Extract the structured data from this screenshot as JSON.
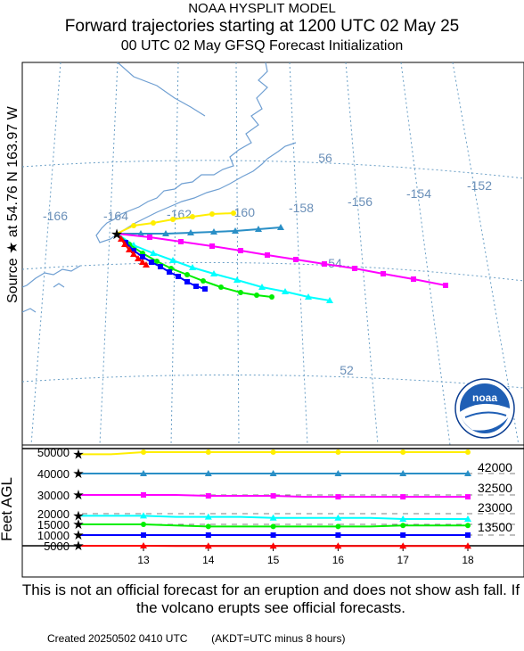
{
  "header": {
    "line1": "NOAA HYSPLIT MODEL",
    "line2": "Forward trajectories starting at 1200 UTC 02 May 25",
    "line3": "00 UTC 02 May     GFSQ  Forecast Initialization"
  },
  "source_label": "Source ★  at    54.76 N  163.97 W",
  "y_axis_label": "Feet AGL",
  "map": {
    "lon_labels": [
      "-166",
      "-164",
      "-162",
      "-160",
      "-158",
      "-156",
      "-154",
      "-152"
    ],
    "lat_labels": [
      "56",
      "54",
      "52"
    ]
  },
  "logo": {
    "text": "noaa",
    "icon": "noaa-logo-icon"
  },
  "chart_data": {
    "type": "line",
    "x": [
      12.5,
      13,
      13.5,
      14,
      14.5,
      15,
      15.5,
      16,
      16.5,
      17,
      17.5,
      18
    ],
    "xticks": [
      "13",
      "14",
      "15",
      "16",
      "17",
      "18"
    ],
    "yticks": [
      "5000",
      "10000",
      "15000",
      "20000",
      "30000",
      "40000",
      "50000"
    ],
    "right_labels": [
      "42000",
      "32500",
      "23000",
      "13500"
    ],
    "series": [
      {
        "color": "#ffee00",
        "marker": "circle",
        "values": [
          49000,
          50000,
          50000,
          50000,
          50000,
          50000,
          50000,
          50000,
          50000,
          50000,
          50000,
          50000
        ]
      },
      {
        "color": "#2a8fc6",
        "marker": "triangle",
        "values": [
          40000,
          40000,
          40000,
          40000,
          40000,
          40000,
          40000,
          40000,
          40000,
          40000,
          40000,
          40000
        ]
      },
      {
        "color": "#ff00ff",
        "marker": "square",
        "values": [
          30000,
          30000,
          30000,
          29500,
          29500,
          29500,
          29000,
          29000,
          29000,
          29000,
          29000,
          29000
        ]
      },
      {
        "color": "#00ffff",
        "marker": "triangle",
        "values": [
          19000,
          19000,
          18500,
          18500,
          18500,
          18000,
          18000,
          18000,
          18000,
          17500,
          17500,
          17500
        ]
      },
      {
        "color": "#00ee00",
        "marker": "circle",
        "values": [
          15000,
          15000,
          14500,
          14000,
          14000,
          14000,
          14000,
          14000,
          14000,
          14500,
          14500,
          14500
        ]
      },
      {
        "color": "#0000ff",
        "marker": "square",
        "values": [
          10000,
          10000,
          10000,
          10000,
          10000,
          10000,
          10000,
          10000,
          10000,
          10000,
          10000,
          10000
        ]
      },
      {
        "color": "#ff0000",
        "marker": "triangle",
        "values": [
          5000,
          5000,
          4500,
          4500,
          4500,
          4500,
          4500,
          4500,
          4500,
          4500,
          4500,
          4500
        ]
      }
    ]
  },
  "disclaimer": "This is not an official forecast for an eruption and does not show ash fall. If the volcano erupts see official forecasts.",
  "footer": {
    "created": "Created 20250502 0410 UTC",
    "tz_note": "(AKDT=UTC minus 8 hours)"
  }
}
